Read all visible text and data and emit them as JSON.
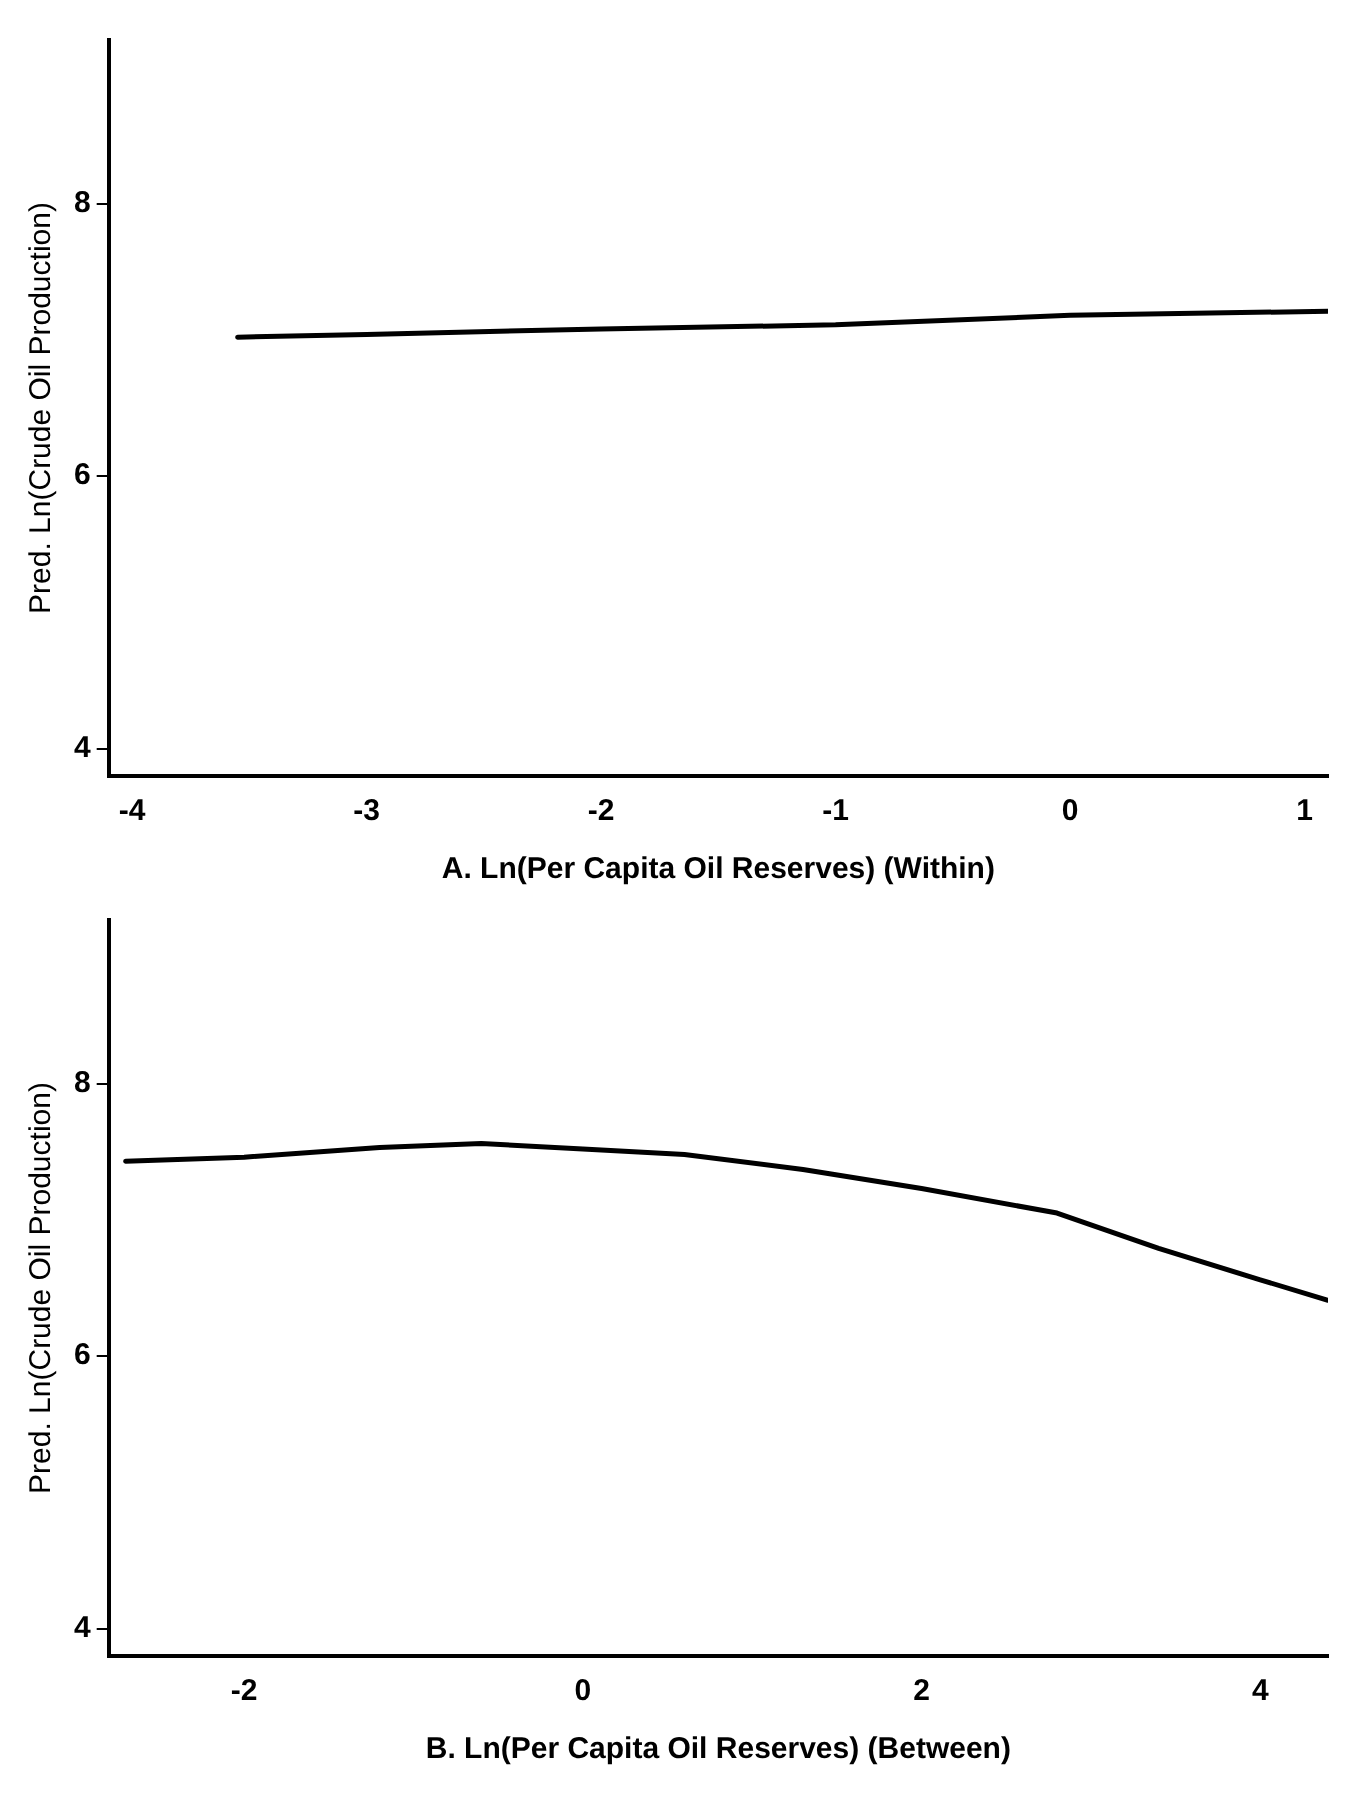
{
  "chart_data": [
    {
      "type": "line",
      "xlabel": "A. Ln(Per Capita Oil Reserves) (Within)",
      "ylabel": "Pred. Ln(Crude Oil Production)",
      "xlim": [
        -4.1,
        1.1
      ],
      "xticks": [
        -4,
        -3,
        -2,
        -1,
        0,
        1
      ],
      "ylim": [
        3.8,
        9.2
      ],
      "yticks": [
        4,
        6,
        8
      ],
      "grid": false,
      "legend": false,
      "marker": "none",
      "line_style": "solid",
      "series": [
        {
          "color": "#000000",
          "x": [
            -3.55,
            -3,
            -2,
            -1,
            0,
            1.1
          ],
          "values": [
            7.02,
            7.04,
            7.08,
            7.11,
            7.18,
            7.21
          ]
        }
      ]
    },
    {
      "type": "line",
      "xlabel": "B. Ln(Per Capita Oil Reserves) (Between)",
      "ylabel": "Pred. Ln(Crude Oil Production)",
      "xlim": [
        -2.8,
        4.4
      ],
      "xticks": [
        -2,
        0,
        2,
        4
      ],
      "ylim": [
        3.8,
        9.2
      ],
      "yticks": [
        4,
        6,
        8
      ],
      "grid": false,
      "legend": false,
      "marker": "none",
      "line_style": "solid",
      "series": [
        {
          "color": "#000000",
          "x": [
            -2.7,
            -2,
            -1.2,
            -0.6,
            0,
            0.6,
            1.3,
            2,
            2.8,
            3.4,
            4,
            4.4
          ],
          "values": [
            7.43,
            7.46,
            7.53,
            7.56,
            7.52,
            7.48,
            7.37,
            7.23,
            7.05,
            6.79,
            6.56,
            6.41
          ]
        }
      ]
    }
  ]
}
